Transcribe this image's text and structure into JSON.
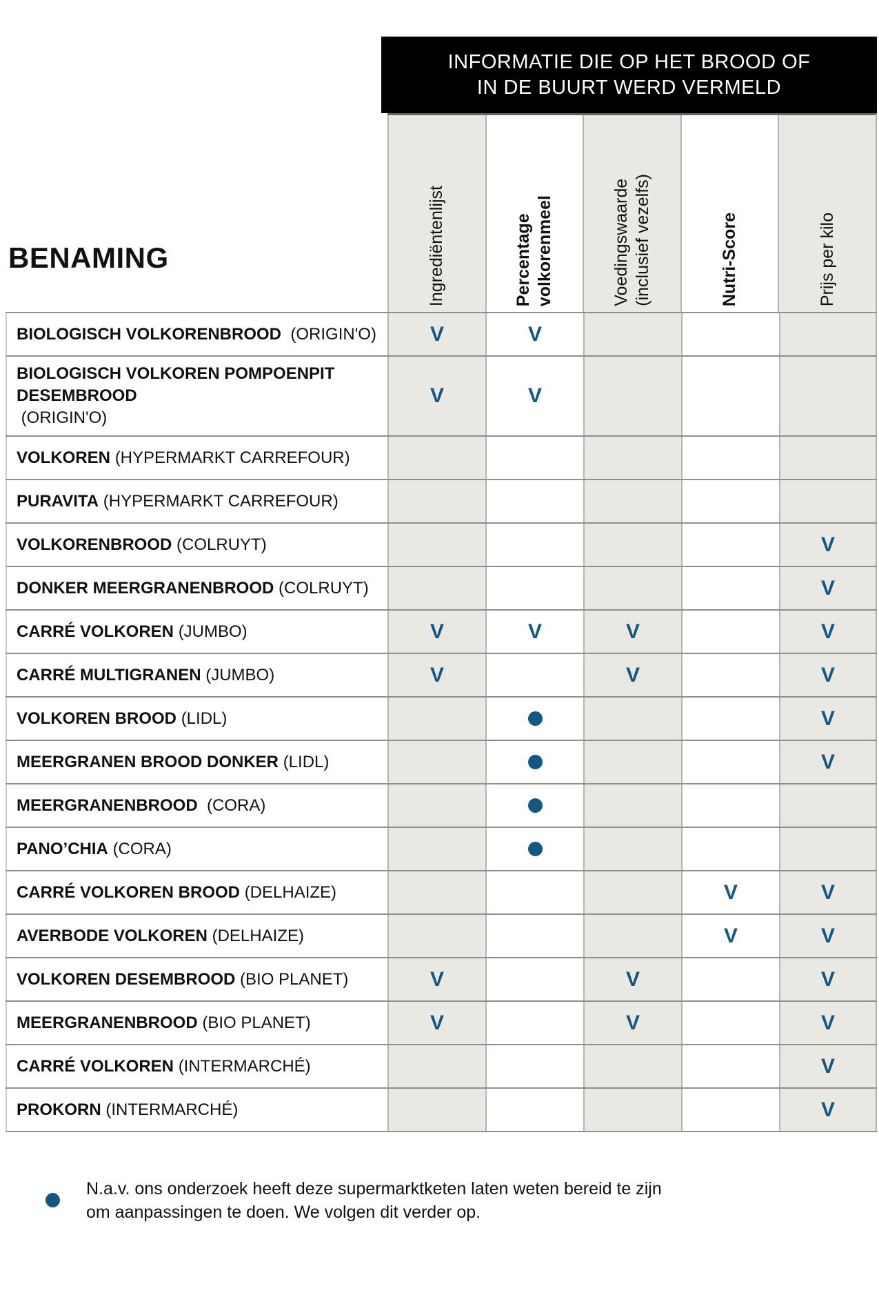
{
  "header": {
    "banner_line1": "INFORMATIE DIE OP HET BROOD OF",
    "banner_line2": "IN DE BUURT WERD VERMELD",
    "row_header": "BENAMING"
  },
  "colors": {
    "accent_blue": "#125884",
    "shaded_column": "#e9e8e2",
    "banner_bg": "#000000",
    "banner_text": "#ffffff"
  },
  "legend": {
    "check_symbol": "V"
  },
  "footnote": {
    "text": "N.a.v. ons onderzoek heeft deze supermarktketen laten weten bereid te zijn\nom aanpassingen te doen. We volgen dit verder op."
  },
  "chart_data": {
    "type": "table",
    "title": "INFORMATIE DIE OP HET BROOD OF IN DE BUURT WERD VERMELD",
    "row_header": "BENAMING",
    "columns": [
      {
        "label": "Ingrediëntenlijst",
        "bold": false,
        "shaded": true
      },
      {
        "label": "Percentage\nvolkorenmeel",
        "bold": true,
        "shaded": false
      },
      {
        "label": "Voedingswaarde\n(inclusief vezelfs)",
        "bold": false,
        "shaded": true
      },
      {
        "label": "Nutri-Score",
        "bold": true,
        "shaded": false
      },
      {
        "label": "Prijs per kilo",
        "bold": false,
        "shaded": true
      }
    ],
    "mark_meanings": {
      "V": "vermeld (check)",
      "dot": "N.a.v. ons onderzoek heeft deze supermarktketen laten weten bereid te zijn om aanpassingen te doen. We volgen dit verder op."
    },
    "rows": [
      {
        "product": "BIOLOGISCH VOLKORENBROOD",
        "store": "  (ORIGIN'O)",
        "marks": [
          "V",
          "V",
          "",
          "",
          ""
        ]
      },
      {
        "product": "BIOLOGISCH VOLKOREN POMPOENPIT DESEMBROOD",
        "store": " (ORIGIN'O)",
        "marks": [
          "V",
          "V",
          "",
          "",
          ""
        ]
      },
      {
        "product": "VOLKOREN",
        "store": " (HYPERMARKT CARREFOUR)",
        "marks": [
          "",
          "",
          "",
          "",
          ""
        ]
      },
      {
        "product": "PURAVITA",
        "store": " (HYPERMARKT CARREFOUR)",
        "marks": [
          "",
          "",
          "",
          "",
          ""
        ]
      },
      {
        "product": "VOLKORENBROOD",
        "store": " (COLRUYT)",
        "marks": [
          "",
          "",
          "",
          "",
          "V"
        ]
      },
      {
        "product": "DONKER MEERGRANENBROOD",
        "store": " (COLRUYT)",
        "marks": [
          "",
          "",
          "",
          "",
          "V"
        ]
      },
      {
        "product": "CARRÉ VOLKOREN",
        "store": " (JUMBO)",
        "marks": [
          "V",
          "V",
          "V",
          "",
          "V"
        ]
      },
      {
        "product": "CARRÉ MULTIGRANEN",
        "store": " (JUMBO)",
        "marks": [
          "V",
          "",
          "V",
          "",
          "V"
        ]
      },
      {
        "product": "VOLKOREN BROOD",
        "store": " (LIDL)",
        "marks": [
          "",
          "dot",
          "",
          "",
          "V"
        ]
      },
      {
        "product": "MEERGRANEN BROOD DONKER",
        "store": " (LIDL)",
        "marks": [
          "",
          "dot",
          "",
          "",
          "V"
        ]
      },
      {
        "product": "MEERGRANENBROOD",
        "store": "  (CORA)",
        "marks": [
          "",
          "dot",
          "",
          "",
          ""
        ]
      },
      {
        "product": "PANO’CHIA",
        "store": " (CORA)",
        "marks": [
          "",
          "dot",
          "",
          "",
          ""
        ]
      },
      {
        "product": "CARRÉ VOLKOREN BROOD",
        "store": " (DELHAIZE)",
        "marks": [
          "",
          "",
          "",
          "V",
          "V"
        ]
      },
      {
        "product": "AVERBODE VOLKOREN",
        "store": " (DELHAIZE)",
        "marks": [
          "",
          "",
          "",
          "V",
          "V"
        ]
      },
      {
        "product": "VOLKOREN DESEMBROOD",
        "store": " (BIO PLANET)",
        "marks": [
          "V",
          "",
          "V",
          "",
          "V"
        ]
      },
      {
        "product": "MEERGRANENBROOD",
        "store": " (BIO PLANET)",
        "marks": [
          "V",
          "",
          "V",
          "",
          "V"
        ]
      },
      {
        "product": "CARRÉ VOLKOREN",
        "store": " (INTERMARCHÉ)",
        "marks": [
          "",
          "",
          "",
          "",
          "V"
        ]
      },
      {
        "product": "PROKORN",
        "store": " (INTERMARCHÉ)",
        "marks": [
          "",
          "",
          "",
          "",
          "V"
        ]
      }
    ]
  }
}
